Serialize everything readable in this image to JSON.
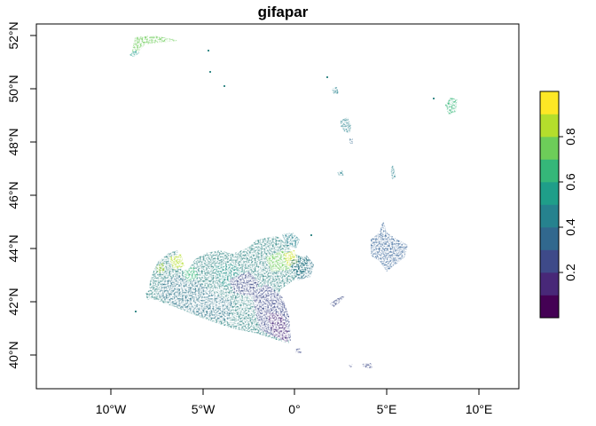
{
  "map": {
    "title": "gifapar",
    "y_ticks": [
      "40°N",
      "42°N",
      "44°N",
      "46°N",
      "48°N",
      "50°N",
      "52°N"
    ],
    "x_ticks": [
      "10°W",
      "5°W",
      "0°",
      "5°E",
      "10°E"
    ],
    "lon_range": [
      -14.2,
      12.2
    ],
    "lat_range": [
      39.1,
      53.2
    ],
    "legend": {
      "placement": "right",
      "tick_labels": [
        "0.2",
        "0.4",
        "0.6",
        "0.8"
      ],
      "tick_values": [
        0.2,
        0.4,
        0.6,
        0.8
      ],
      "range": [
        0,
        1
      ],
      "colors": [
        "#440154",
        "#482878",
        "#3E4A89",
        "#31688E",
        "#26828E",
        "#1F9E89",
        "#35B779",
        "#6DCD59",
        "#B4DE2C",
        "#FDE725"
      ]
    }
  }
}
